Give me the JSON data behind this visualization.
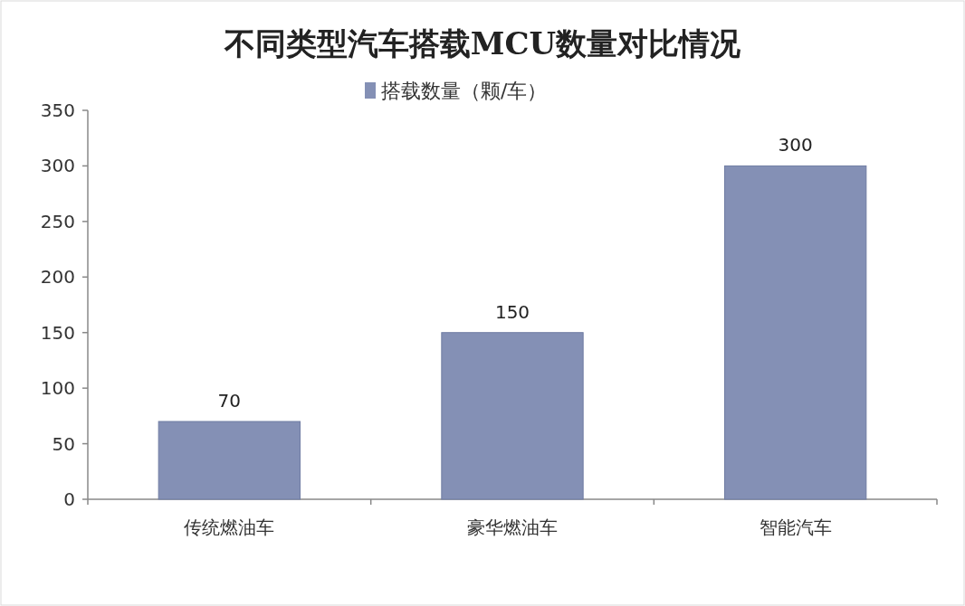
{
  "chart_data": {
    "type": "bar",
    "title": "不同类型汽车搭载MCU数量对比情况",
    "categories": [
      "传统燃油车",
      "豪华燃油车",
      "智能汽车"
    ],
    "series": [
      {
        "name": "搭载数量（颗/车）",
        "color": "#8490b5",
        "values": [
          70,
          150,
          300
        ]
      }
    ],
    "ylim": [
      0,
      350
    ],
    "yticks": [
      0,
      50,
      100,
      150,
      200,
      250,
      300,
      350
    ],
    "data_labels": true,
    "legend": "top"
  }
}
